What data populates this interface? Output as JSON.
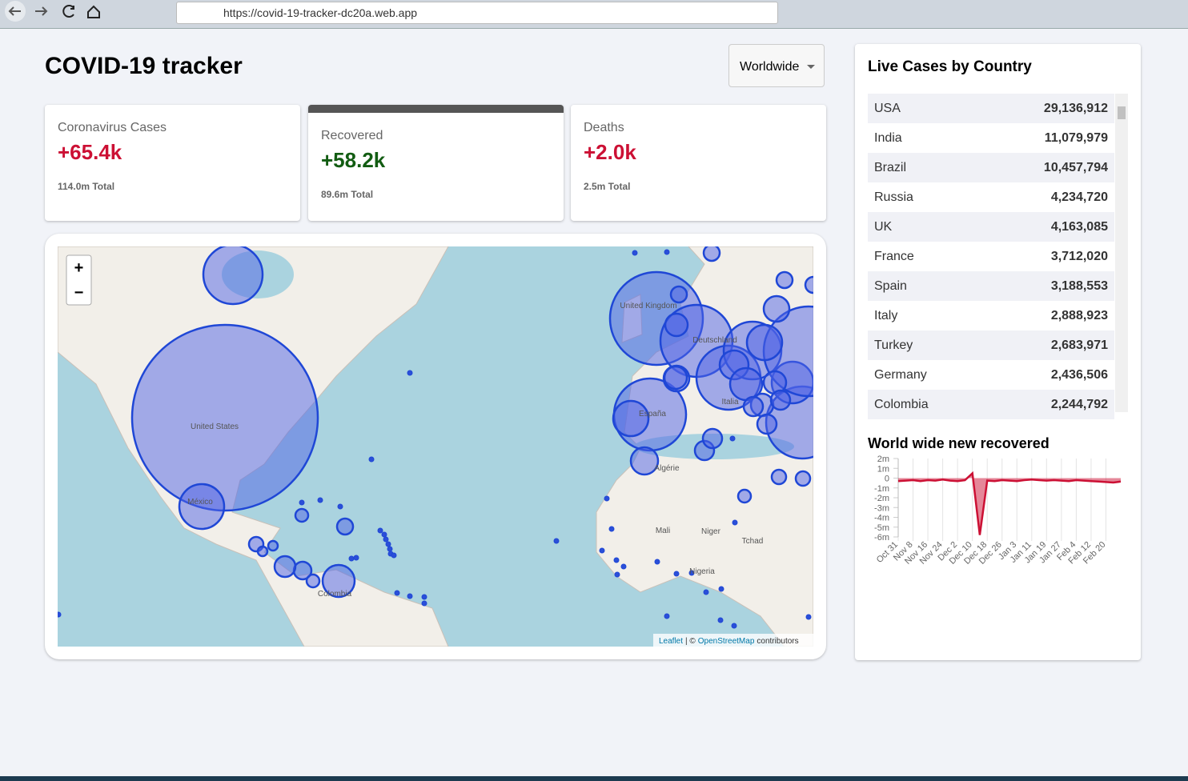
{
  "browser": {
    "url": "https://covid-19-tracker-dc20a.web.app"
  },
  "header": {
    "title": "COVID-19 tracker",
    "dropdown": "Worldwide"
  },
  "info_boxes": [
    {
      "title": "Coronavirus Cases",
      "cases": "+65.4k",
      "total": "114.0m Total"
    },
    {
      "title": "Recovered",
      "cases": "+58.2k",
      "total": "89.6m Total"
    },
    {
      "title": "Deaths",
      "cases": "+2.0k",
      "total": "2.5m Total"
    }
  ],
  "map": {
    "labels": [
      "United States",
      "México",
      "Colombia",
      "United Kingdom",
      "Deutschland",
      "España",
      "Italia",
      "Algérie",
      "Mali",
      "Niger",
      "Tchad",
      "Nigeria"
    ],
    "zoom_in": "+",
    "zoom_out": "−",
    "attribution_link": "Leaflet",
    "attribution_sep": "| ©",
    "attribution_osm": "OpenStreetMap",
    "attribution_tail": "contributors"
  },
  "sidebar": {
    "table_title": "Live Cases by Country",
    "table": {
      "rows": [
        [
          "USA",
          "29,136,912"
        ],
        [
          "India",
          "11,079,979"
        ],
        [
          "Brazil",
          "10,457,794"
        ],
        [
          "Russia",
          "4,234,720"
        ],
        [
          "UK",
          "4,163,085"
        ],
        [
          "France",
          "3,712,020"
        ],
        [
          "Spain",
          "3,188,553"
        ],
        [
          "Italy",
          "2,888,923"
        ],
        [
          "Turkey",
          "2,683,971"
        ],
        [
          "Germany",
          "2,436,506"
        ],
        [
          "Colombia",
          "2,244,792"
        ]
      ]
    }
  },
  "chart_data": {
    "type": "line",
    "title": "World wide new recovered",
    "categories": [
      "Oct 31",
      null,
      "Nov 8",
      null,
      "Nov 16",
      null,
      "Nov 24",
      null,
      "Dec 2",
      null,
      "Dec 10",
      null,
      "Dec 18",
      null,
      "Dec 26",
      null,
      "Jan 3",
      null,
      "Jan 11",
      null,
      "Jan 19",
      null,
      "Jan 27",
      null,
      "Feb 4",
      null,
      "Feb 12",
      null,
      "Feb 20",
      null,
      null
    ],
    "series": [
      {
        "name": "recovered",
        "color": "#cc1034",
        "fill": "rgba(204,16,52,0.5)",
        "values": [
          -300000,
          -250000,
          -200000,
          -300000,
          -200000,
          -250000,
          -150000,
          -250000,
          -300000,
          -200000,
          500000,
          -5800000,
          -250000,
          -300000,
          -200000,
          -250000,
          -300000,
          -200000,
          -150000,
          -200000,
          -250000,
          -200000,
          -250000,
          -300000,
          -200000,
          -250000,
          -300000,
          -350000,
          -400000,
          -450000,
          -350000
        ]
      }
    ],
    "ylim": [
      -6000000,
      2000000
    ],
    "yticks": [
      {
        "value": 2000000,
        "label": "2m"
      },
      {
        "value": 1000000,
        "label": "1m"
      },
      0,
      {
        "value": -1000000,
        "label": "-1m"
      },
      {
        "value": -2000000,
        "label": "-2m"
      },
      {
        "value": -3000000,
        "label": "-3m"
      },
      {
        "value": -4000000,
        "label": "-4m"
      },
      {
        "value": -5000000,
        "label": "-5m"
      },
      {
        "value": -6000000,
        "label": "-6m"
      }
    ],
    "grid": true
  }
}
